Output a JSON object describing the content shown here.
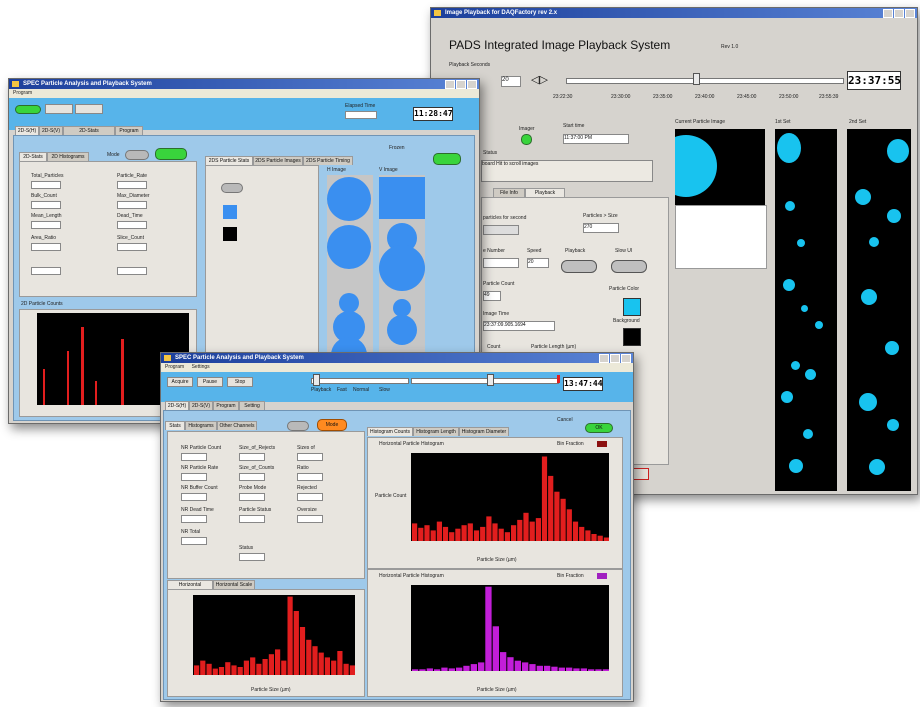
{
  "playback_window": {
    "title": "Image Playback for DAQFactory rev 2.x",
    "heading": "PADS Integrated Image Playback System",
    "version": "Rev 1.0",
    "playback_seconds_label": "Playback Seconds",
    "seconds_value": "20",
    "clock": "23:37:55",
    "timeline_ticks": [
      "23:22:30",
      "23:30:00",
      "23:35:00",
      "23:40:00",
      "23:45:00",
      "23:50:00",
      "23:55:39"
    ],
    "imager_label": "Imager",
    "start_time_label": "Start time",
    "start_time_value": "11:37:00 PM",
    "status_label": "Status",
    "status_text": "board Hit to scroll images",
    "tabs": [
      "File Info",
      "Playback"
    ],
    "particles_per_second_label": "particles for second",
    "particles_gt_size_label": "Particles > Size",
    "particles_gt_size_value": "270",
    "image_number_label": "e Number",
    "speed_label": "Speed",
    "speed_value": "20",
    "playback_toggle_label": "Playback",
    "slow_ui_label": "Slow UI",
    "particle_count_label": "Particle Count",
    "particle_count_value": "49",
    "particle_color_label": "Particle Color",
    "image_time_label": "Image Time",
    "image_time_value": "23:37:09.905.1694",
    "background_label": "Background",
    "count_label": "Count",
    "particle_length_label": "Particle Length (µm)",
    "current_image_label": "Current Particle Image",
    "set1_label": "1st Set",
    "set2_label": "2nd Set",
    "colors": {
      "particle": "#18c3ef",
      "background": "#000000"
    }
  },
  "analysis_window": {
    "title": "SPEC Particle Analysis and Playback System",
    "menu": [
      "Program"
    ],
    "toolbar_buttons": [
      "Acquire",
      "Pause",
      "Stop"
    ],
    "clock": "11:28:47",
    "field_label": "Elapsed Time",
    "tabs": [
      "2D-S(H)",
      "2D-S(V)",
      "2D-Stats",
      "Program"
    ],
    "subtabs": [
      "2D-Stats",
      "2D Histograms"
    ],
    "image_tabs": [
      "2DS Particle Stats",
      "2DS Particle Images",
      "2DS Particle Timing"
    ],
    "mode_label": "Mode",
    "labels": [
      "Total_Particles",
      "Particle_Rate",
      "Bulk_Count",
      "Max_Diameter",
      "Mean_Length",
      "Dead_Time",
      "Area_Ratio",
      "Slice_Count"
    ],
    "chart_title": "2D Particle Counts",
    "image_label_a": "H Image",
    "image_label_b": "V Image",
    "status_text": "Frozen",
    "ok_label": "OK"
  },
  "histogram_window": {
    "title": "SPEC Particle Analysis and Playback System",
    "menu": [
      "Program",
      "Settings"
    ],
    "toolbar_buttons": [
      "Acquire",
      "Pause",
      "Stop"
    ],
    "clock": "13:47:44",
    "slider_ticks": [
      "Playback",
      "Fast",
      "Normal",
      "Slow"
    ],
    "tabs": [
      "2D-S(H)",
      "2D-S(V)",
      "Program",
      "Setting"
    ],
    "subtabs": [
      "Stats",
      "Histograms",
      "Other Channels"
    ],
    "mode_button": "Mode",
    "cancel_label": "Cancel",
    "stats_labels": [
      "NR Particle Count",
      "Size_of_Rejects",
      "Sizes of",
      "NR Particle Rate",
      "Size_of_Counts",
      "Ratio",
      "NR Buffer Count",
      "Probe Mode",
      "Rejected",
      "NR Dead Time",
      "Particle Status",
      "Oversize",
      "NR Total",
      "Status"
    ],
    "lower_tabs": [
      "Horizontal Diameter",
      "Horizontal Scale"
    ],
    "right_tabs": [
      "Histogram Counts",
      "Histogram Length",
      "Histogram Diameter"
    ],
    "upper_chart_title": "Horizontal Particle Histogram",
    "lower_chart_title": "Horizontal Particle Histogram",
    "left_chart_title": "Horizontal Particle Histogram",
    "bar_color_label": "Bin Fraction",
    "x_axis_label": "Particle Size (µm)",
    "y_axis_label": "Particle Count",
    "ok_label": "OK"
  }
}
